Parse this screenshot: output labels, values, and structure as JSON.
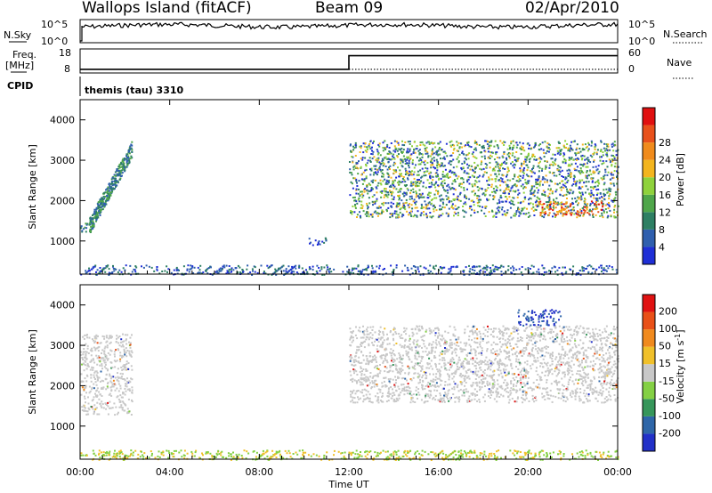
{
  "header": {
    "station": "Wallops Island (fitACF)",
    "beam": "Beam 09",
    "date": "02/Apr/2010"
  },
  "noise_panel": {
    "left_label": "N.Sky",
    "left_ticks": [
      "10^5",
      "10^0"
    ],
    "right_label": "N.Search",
    "right_ticks": [
      "10^5",
      "10^0"
    ]
  },
  "freq_panel": {
    "left_label_line1": "Freq.",
    "left_label_line2": "[MHz]",
    "left_ticks": [
      "18",
      "8"
    ],
    "right_label": "Nave",
    "right_ticks": [
      "60",
      "0"
    ],
    "freq_step_time_h": 12.0,
    "freq_before_norm": 0.15,
    "freq_after_norm": 0.72,
    "nave_norm": 0.15
  },
  "cpid": {
    "label": "CPID",
    "program": "themis (tau) 3310"
  },
  "x_axis": {
    "label": "Time UT",
    "ticks": [
      "00:00",
      "04:00",
      "08:00",
      "12:00",
      "16:00",
      "20:00",
      "00:00"
    ],
    "range_hours": [
      0,
      24
    ]
  },
  "chart_data": [
    {
      "type": "heatmap",
      "title": "",
      "quantity": "Power",
      "xlabel": "Time UT",
      "ylabel": "Slant Range [km]",
      "colorbar_label": "Power [dB]",
      "ylim": [
        180,
        4500
      ],
      "yticks": [
        "1000",
        "2000",
        "3000",
        "4000"
      ],
      "colorbar_ticks": [
        "4",
        "8",
        "12",
        "16",
        "20",
        "24",
        "28"
      ],
      "colorbar_colors": [
        "#1f2fd6",
        "#2f5fae",
        "#2e7f63",
        "#4fa64a",
        "#8fd23c",
        "#f3b51e",
        "#f08b1c",
        "#e8511b",
        "#e01010"
      ],
      "regions": [
        {
          "t": [
            0.0,
            0.5
          ],
          "r": [
            1250,
            1550
          ],
          "level": "mid"
        },
        {
          "t": [
            0.4,
            2.3
          ],
          "r": [
            1400,
            3300
          ],
          "level": "mid"
        },
        {
          "t": [
            12.0,
            24.0
          ],
          "r": [
            1600,
            3500
          ],
          "level": "mixed"
        },
        {
          "t": [
            20.5,
            23.3
          ],
          "r": [
            1650,
            2000
          ],
          "level": "high"
        },
        {
          "t": [
            10.2,
            11.0
          ],
          "r": [
            900,
            1100
          ],
          "level": "low"
        },
        {
          "t": [
            0.0,
            24.0
          ],
          "r": [
            180,
            420
          ],
          "level": "low"
        }
      ]
    },
    {
      "type": "heatmap",
      "title": "",
      "quantity": "Velocity",
      "xlabel": "Time UT",
      "ylabel": "Slant Range [km]",
      "colorbar_label": "Velocity [m s^-1]",
      "ylim": [
        180,
        4500
      ],
      "yticks": [
        "1000",
        "2000",
        "3000",
        "4000"
      ],
      "colorbar_ticks": [
        "200",
        "100",
        "50",
        "15",
        "-15",
        "-50",
        "-100",
        "-200"
      ],
      "colorbar_colors": [
        "#2231c8",
        "#2e66a8",
        "#36965a",
        "#84d044",
        "#c8c8c8",
        "#f0c02a",
        "#f08a1e",
        "#e85018",
        "#e01212"
      ],
      "regions": [
        {
          "t": [
            0.0,
            2.3
          ],
          "r": [
            1300,
            3300
          ],
          "level": "gray"
        },
        {
          "t": [
            12.0,
            24.0
          ],
          "r": [
            1600,
            3500
          ],
          "level": "gray"
        },
        {
          "t": [
            19.5,
            21.5
          ],
          "r": [
            3500,
            3900
          ],
          "level": "blue"
        },
        {
          "t": [
            0.0,
            24.0
          ],
          "r": [
            180,
            420
          ],
          "level": "green"
        }
      ]
    }
  ]
}
